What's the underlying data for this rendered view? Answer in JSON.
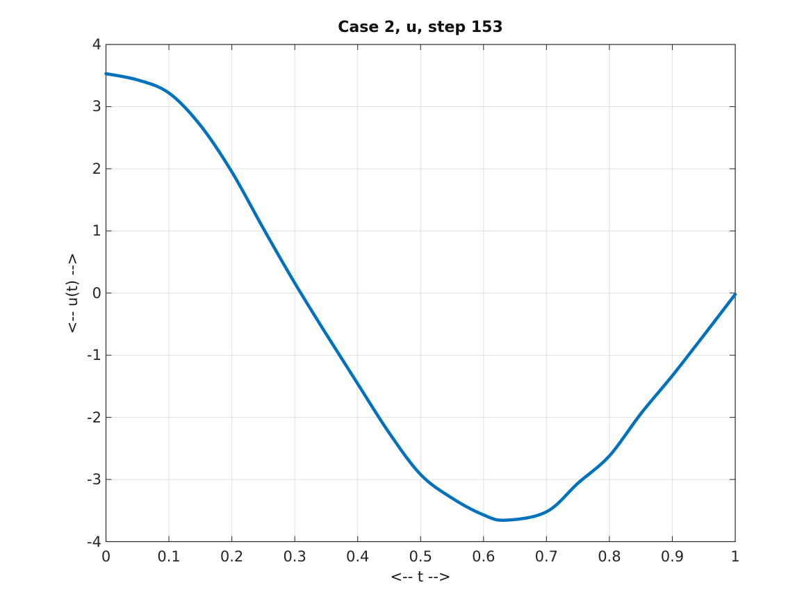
{
  "chart_data": {
    "type": "line",
    "title": "Case 2, u, step 153",
    "xlabel": "<-- t -->",
    "ylabel": "<-- u(t) -->",
    "xlim": [
      0,
      1
    ],
    "ylim": [
      -4,
      4
    ],
    "grid": true,
    "legend_position": "none",
    "xticks": {
      "values": [
        0,
        0.1,
        0.2,
        0.3,
        0.4,
        0.5,
        0.6,
        0.7,
        0.8,
        0.9,
        1
      ],
      "labels": [
        "0",
        "0.1",
        "0.2",
        "0.3",
        "0.4",
        "0.5",
        "0.6",
        "0.7",
        "0.8",
        "0.9",
        "1"
      ]
    },
    "yticks": {
      "values": [
        -4,
        -3,
        -2,
        -1,
        0,
        1,
        2,
        3,
        4
      ],
      "labels": [
        "-4",
        "-3",
        "-2",
        "-1",
        "0",
        "1",
        "2",
        "3",
        "4"
      ]
    },
    "series": [
      {
        "name": "u",
        "color": "#0072BD",
        "line_width": 4.5,
        "x": [
          0,
          0.05,
          0.1,
          0.15,
          0.2,
          0.25,
          0.3,
          0.35,
          0.4,
          0.45,
          0.5,
          0.55,
          0.6,
          0.635,
          0.7,
          0.75,
          0.8,
          0.85,
          0.9,
          0.95,
          1.0
        ],
        "y": [
          3.53,
          3.43,
          3.22,
          2.7,
          1.95,
          1.04,
          0.16,
          -0.66,
          -1.46,
          -2.25,
          -2.92,
          -3.3,
          -3.57,
          -3.655,
          -3.52,
          -3.06,
          -2.62,
          -1.94,
          -1.33,
          -0.68,
          -0.02
        ]
      }
    ]
  },
  "colors": {
    "background": "#ffffff",
    "axis": "#262626",
    "grid": "#e0e0e0",
    "tick_text": "#262626",
    "line": "#0072BD"
  }
}
